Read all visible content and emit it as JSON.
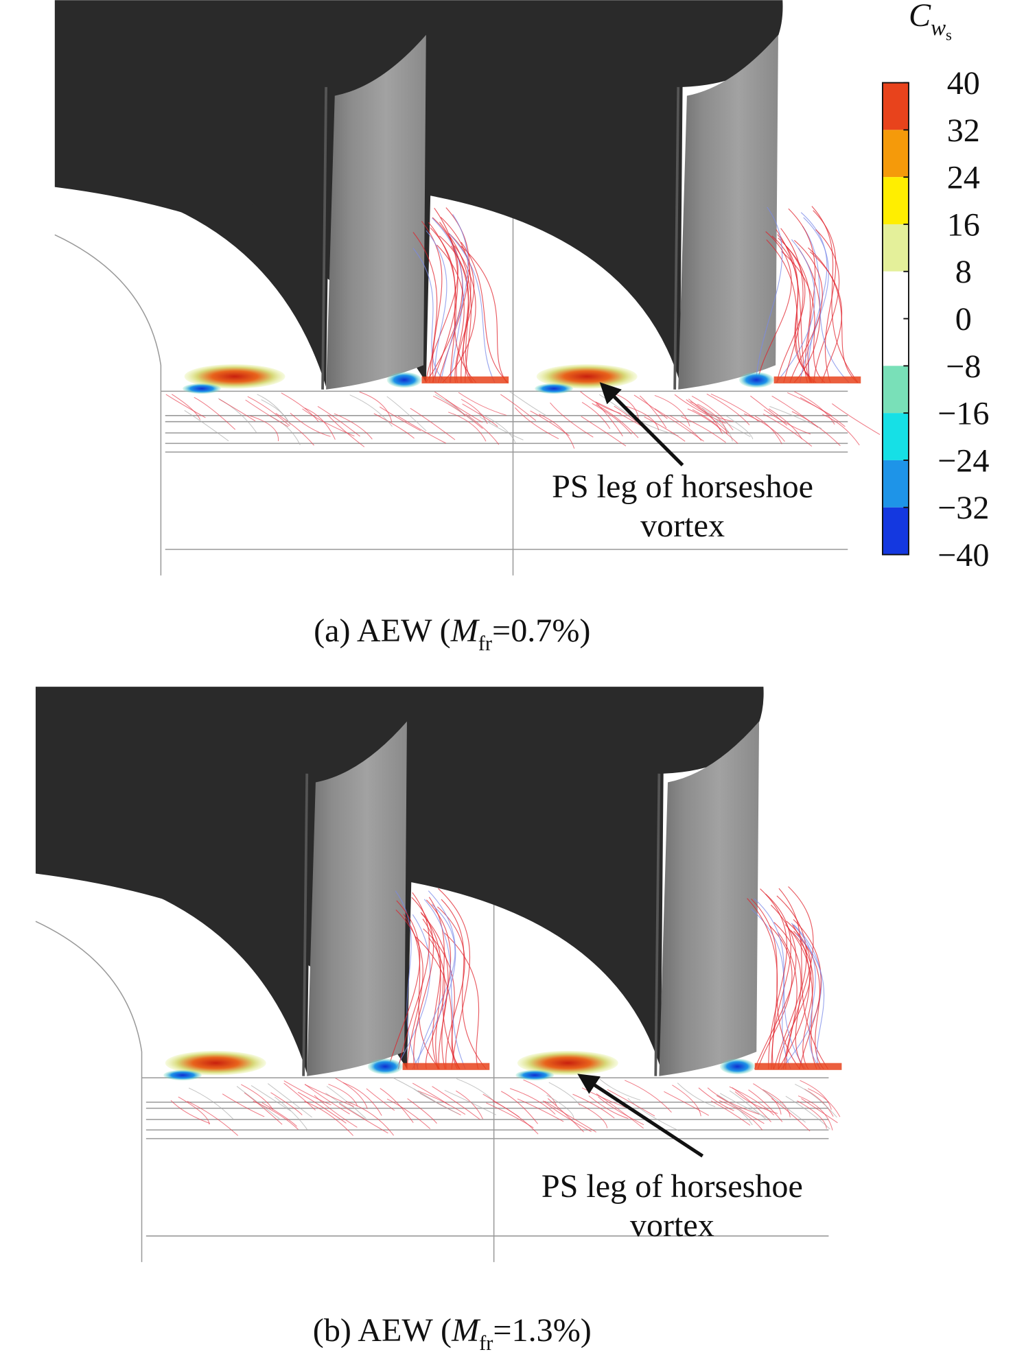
{
  "colorbar": {
    "title": {
      "base": "C",
      "sub": "w",
      "subsub": "s"
    },
    "lim": [
      -40,
      40
    ],
    "ticks": [
      40,
      32,
      24,
      16,
      8,
      0,
      {
        "value": -8,
        "label": "−8"
      },
      {
        "value": -16,
        "label": "−16"
      },
      {
        "value": -24,
        "label": "−24"
      },
      {
        "value": -32,
        "label": "−32"
      },
      {
        "value": -40,
        "label": "−40"
      }
    ],
    "colors": [
      "#e8431c",
      "#f59a0a",
      "#ffee00",
      "#e4f09a",
      "#ffffff",
      "#ffffff",
      "#79e0b8",
      "#16e0e6",
      "#1e94e8",
      "#1438e0"
    ]
  },
  "panels": [
    {
      "caption": {
        "prefix": "(a) AEW (",
        "var": "M",
        "sub": "fr",
        "suffix": "=0.7%)"
      },
      "annotation": [
        "PS leg of horseshoe",
        "vortex"
      ]
    },
    {
      "caption": {
        "prefix": "(b) AEW (",
        "var": "M",
        "sub": "fr",
        "suffix": "=1.3%)"
      },
      "annotation": [
        "PS leg of horseshoe",
        "vortex"
      ]
    }
  ]
}
